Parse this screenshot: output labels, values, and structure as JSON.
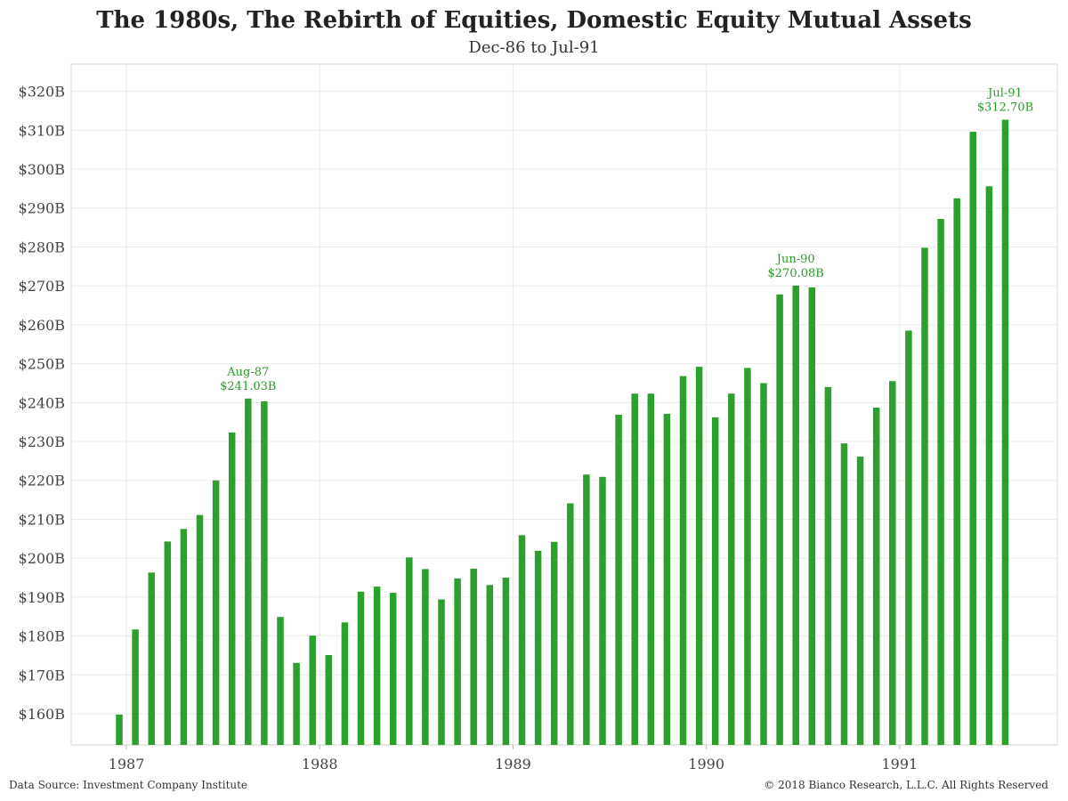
{
  "header": {
    "title": "The 1980s, The Rebirth of Equities, Domestic Equity Mutual Assets",
    "subtitle": "Dec-86 to Jul-91"
  },
  "footer": {
    "source": "Data Source: Investment Company Institute",
    "copyright": "© 2018  Bianco Research, L.L.C. All Rights Reserved"
  },
  "colors": {
    "bar": "#2ca02c",
    "annotation": "#2a9a2a",
    "grid": "#ebebeb",
    "frame": "#d8d8d8"
  },
  "chart_data": {
    "type": "bar",
    "title": "The 1980s, The Rebirth of Equities, Domestic Equity Mutual Assets",
    "subtitle": "Dec-86 to Jul-91",
    "xlabel": "",
    "ylabel": "",
    "ylim": [
      152,
      327
    ],
    "grid": true,
    "y_ticks": [
      {
        "value": 160,
        "label": "$160B"
      },
      {
        "value": 170,
        "label": "$170B"
      },
      {
        "value": 180,
        "label": "$180B"
      },
      {
        "value": 190,
        "label": "$190B"
      },
      {
        "value": 200,
        "label": "$200B"
      },
      {
        "value": 210,
        "label": "$210B"
      },
      {
        "value": 220,
        "label": "$220B"
      },
      {
        "value": 230,
        "label": "$230B"
      },
      {
        "value": 240,
        "label": "$240B"
      },
      {
        "value": 250,
        "label": "$250B"
      },
      {
        "value": 260,
        "label": "$260B"
      },
      {
        "value": 270,
        "label": "$270B"
      },
      {
        "value": 280,
        "label": "$280B"
      },
      {
        "value": 290,
        "label": "$290B"
      },
      {
        "value": 300,
        "label": "$300B"
      },
      {
        "value": 310,
        "label": "$310B"
      },
      {
        "value": 320,
        "label": "$320B"
      }
    ],
    "x_ticks": [
      {
        "label": "1987",
        "index": 1
      },
      {
        "label": "1988",
        "index": 13
      },
      {
        "label": "1989",
        "index": 25
      },
      {
        "label": "1990",
        "index": 37
      },
      {
        "label": "1991",
        "index": 49
      }
    ],
    "categories": [
      "Dec-86",
      "Jan-87",
      "Feb-87",
      "Mar-87",
      "Apr-87",
      "May-87",
      "Jun-87",
      "Jul-87",
      "Aug-87",
      "Sep-87",
      "Oct-87",
      "Nov-87",
      "Dec-87",
      "Jan-88",
      "Feb-88",
      "Mar-88",
      "Apr-88",
      "May-88",
      "Jun-88",
      "Jul-88",
      "Aug-88",
      "Sep-88",
      "Oct-88",
      "Nov-88",
      "Dec-88",
      "Jan-89",
      "Feb-89",
      "Mar-89",
      "Apr-89",
      "May-89",
      "Jun-89",
      "Jul-89",
      "Aug-89",
      "Sep-89",
      "Oct-89",
      "Nov-89",
      "Dec-89",
      "Jan-90",
      "Feb-90",
      "Mar-90",
      "Apr-90",
      "May-90",
      "Jun-90",
      "Jul-90",
      "Aug-90",
      "Sep-90",
      "Oct-90",
      "Nov-90",
      "Dec-90",
      "Jan-91",
      "Feb-91",
      "Mar-91",
      "Apr-91",
      "May-91",
      "Jun-91",
      "Jul-91"
    ],
    "values": [
      159.8,
      181.7,
      196.3,
      204.3,
      207.5,
      211.1,
      220.0,
      232.3,
      241.03,
      240.3,
      184.9,
      173.1,
      180.1,
      175.1,
      183.5,
      191.4,
      192.7,
      191.1,
      200.2,
      197.2,
      189.4,
      194.8,
      197.3,
      193.1,
      195.0,
      205.9,
      201.9,
      204.2,
      214.1,
      221.5,
      220.9,
      236.9,
      242.3,
      242.3,
      237.1,
      246.8,
      249.2,
      236.2,
      242.3,
      248.9,
      245.0,
      267.8,
      270.08,
      269.6,
      244.0,
      229.5,
      226.1,
      238.7,
      245.5,
      258.5,
      279.8,
      287.2,
      292.5,
      309.6,
      295.6,
      312.7
    ],
    "annotations": [
      {
        "index": 8,
        "label": "Aug-87",
        "value_label": "$241.03B"
      },
      {
        "index": 42,
        "label": "Jun-90",
        "value_label": "$270.08B"
      },
      {
        "index": 55,
        "label": "Jul-91",
        "value_label": "$312.70B"
      }
    ]
  }
}
